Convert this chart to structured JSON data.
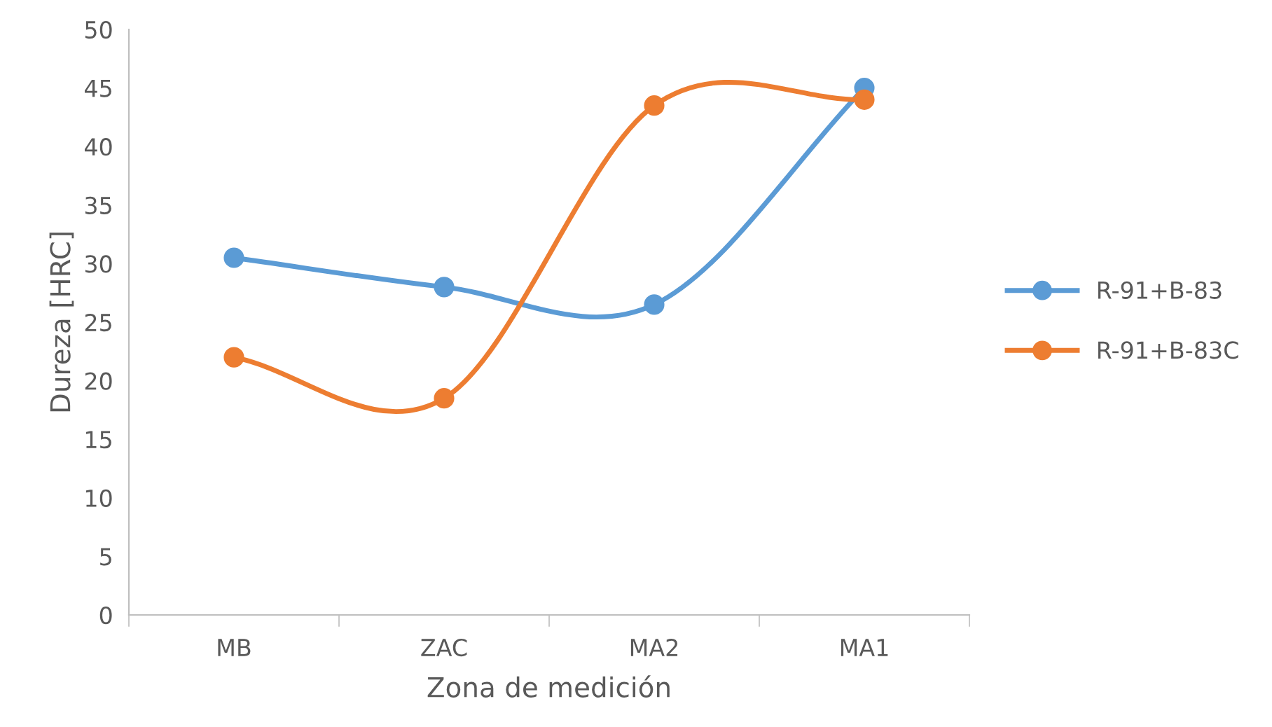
{
  "chart_data": {
    "type": "line",
    "xlabel": "Zona de medición",
    "ylabel": "Dureza [HRC]",
    "categories": [
      "MB",
      "ZAC",
      "MA2",
      "MA1"
    ],
    "series": [
      {
        "name": "R-91+B-83",
        "color": "#5b9bd5",
        "values": [
          30.5,
          28,
          26.5,
          45
        ]
      },
      {
        "name": "R-91+B-83C",
        "color": "#ed7d31",
        "values": [
          22,
          18.5,
          43.5,
          44
        ]
      }
    ],
    "ylim": [
      0,
      50
    ],
    "yticks": [
      0,
      5,
      10,
      15,
      20,
      25,
      30,
      35,
      40,
      45,
      50
    ],
    "grid": false,
    "legend": "right",
    "marker": "circle",
    "line_style": "solid"
  }
}
